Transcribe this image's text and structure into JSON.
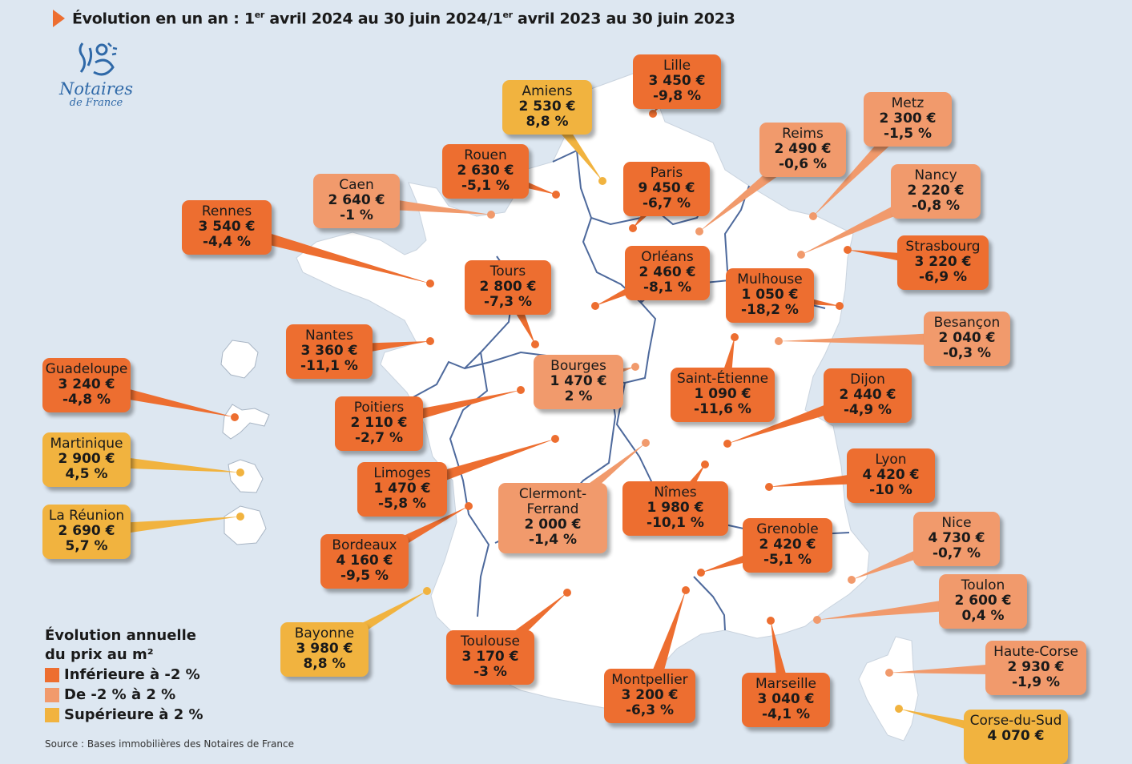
{
  "title": {
    "part1": "Évolution en un an : 1",
    "sup1": "er",
    "part2": " avril 2024 au 30 juin 2024/1",
    "sup2": "er",
    "part3": " avril 2023 au 30 juin 2023"
  },
  "logo": {
    "title": "Notaires",
    "subtitle": "de France"
  },
  "colors": {
    "below_minus2": "#ed6e30",
    "between": "#f19a6c",
    "above_plus2": "#f1b33f",
    "map_fill": "#ffffff",
    "background": "#dde7f1",
    "region_border": "#2f4f8b"
  },
  "cities": [
    {
      "name": "Lille",
      "price": "3 450 €",
      "change": "-9,8 %",
      "cat": "low"
    },
    {
      "name": "Amiens",
      "price": "2 530 €",
      "change": "8,8 %",
      "cat": "high"
    },
    {
      "name": "Metz",
      "price": "2 300 €",
      "change": "-1,5 %",
      "cat": "mid"
    },
    {
      "name": "Reims",
      "price": "2 490 €",
      "change": "-0,6 %",
      "cat": "mid"
    },
    {
      "name": "Rouen",
      "price": "2 630 €",
      "change": "-5,1 %",
      "cat": "low"
    },
    {
      "name": "Paris",
      "price": "9 450 €",
      "change": "-6,7 %",
      "cat": "low"
    },
    {
      "name": "Nancy",
      "price": "2 220 €",
      "change": "-0,8 %",
      "cat": "mid"
    },
    {
      "name": "Caen",
      "price": "2 640 €",
      "change": "-1 %",
      "cat": "mid"
    },
    {
      "name": "Rennes",
      "price": "3 540 €",
      "change": "-4,4 %",
      "cat": "low"
    },
    {
      "name": "Strasbourg",
      "price": "3 220 €",
      "change": "-6,9 %",
      "cat": "low"
    },
    {
      "name": "Tours",
      "price": "2 800 €",
      "change": "-7,3 %",
      "cat": "low"
    },
    {
      "name": "Orléans",
      "price": "2 460 €",
      "change": "-8,1 %",
      "cat": "low"
    },
    {
      "name": "Mulhouse",
      "price": "1 050 €",
      "change": "-18,2 %",
      "cat": "low"
    },
    {
      "name": "Besançon",
      "price": "2 040 €",
      "change": "-0,3 %",
      "cat": "mid"
    },
    {
      "name": "Nantes",
      "price": "3 360 €",
      "change": "-11,1 %",
      "cat": "low"
    },
    {
      "name": "Guadeloupe",
      "price": "3 240 €",
      "change": "-4,8 %",
      "cat": "low"
    },
    {
      "name": "Bourges",
      "price": "1 470 €",
      "change": "2 %",
      "cat": "mid"
    },
    {
      "name": "Saint-Étienne",
      "price": "1 090 €",
      "change": "-11,6 %",
      "cat": "low"
    },
    {
      "name": "Dijon",
      "price": "2 440 €",
      "change": "-4,9 %",
      "cat": "low"
    },
    {
      "name": "Poitiers",
      "price": "2 110 €",
      "change": "-2,7 %",
      "cat": "low"
    },
    {
      "name": "Martinique",
      "price": "2 900 €",
      "change": "4,5 %",
      "cat": "high"
    },
    {
      "name": "Lyon",
      "price": "4 420 €",
      "change": "-10 %",
      "cat": "low"
    },
    {
      "name": "Limoges",
      "price": "1 470 €",
      "change": "-5,8 %",
      "cat": "low"
    },
    {
      "name": "Clermont-\nFerrand",
      "price": "2 000 €",
      "change": "-1,4 %",
      "cat": "mid"
    },
    {
      "name": "Nîmes",
      "price": "1 980 €",
      "change": "-10,1 %",
      "cat": "low"
    },
    {
      "name": "La Réunion",
      "price": "2 690 €",
      "change": "5,7 %",
      "cat": "high"
    },
    {
      "name": "Nice",
      "price": "4 730 €",
      "change": "-0,7 %",
      "cat": "mid"
    },
    {
      "name": "Grenoble",
      "price": "2 420 €",
      "change": "-5,1 %",
      "cat": "low"
    },
    {
      "name": "Bordeaux",
      "price": "4 160 €",
      "change": "-9,5 %",
      "cat": "low"
    },
    {
      "name": "Toulon",
      "price": "2 600 €",
      "change": "0,4 %",
      "cat": "mid"
    },
    {
      "name": "Bayonne",
      "price": "3 980 €",
      "change": "8,8 %",
      "cat": "high"
    },
    {
      "name": "Toulouse",
      "price": "3 170 €",
      "change": "-3 %",
      "cat": "low"
    },
    {
      "name": "Haute-Corse",
      "price": "2 930 €",
      "change": "-1,9 %",
      "cat": "mid"
    },
    {
      "name": "Montpellier",
      "price": "3 200 €",
      "change": "-6,3 %",
      "cat": "low"
    },
    {
      "name": "Marseille",
      "price": "3 040 €",
      "change": "-4,1 %",
      "cat": "low"
    },
    {
      "name": "Corse-du-Sud",
      "price": "4 070 €",
      "change": "",
      "cat": "high"
    }
  ],
  "legend": {
    "title_line1": "Évolution annuelle",
    "title_line2": "du prix au m²",
    "items": [
      {
        "label": "Inférieure à -2 %",
        "cat": "low"
      },
      {
        "label": "De -2 % à 2 %",
        "cat": "mid"
      },
      {
        "label": "Supérieure à 2 %",
        "cat": "high"
      }
    ]
  },
  "source": "Source : Bases immobilières des Notaires de France"
}
